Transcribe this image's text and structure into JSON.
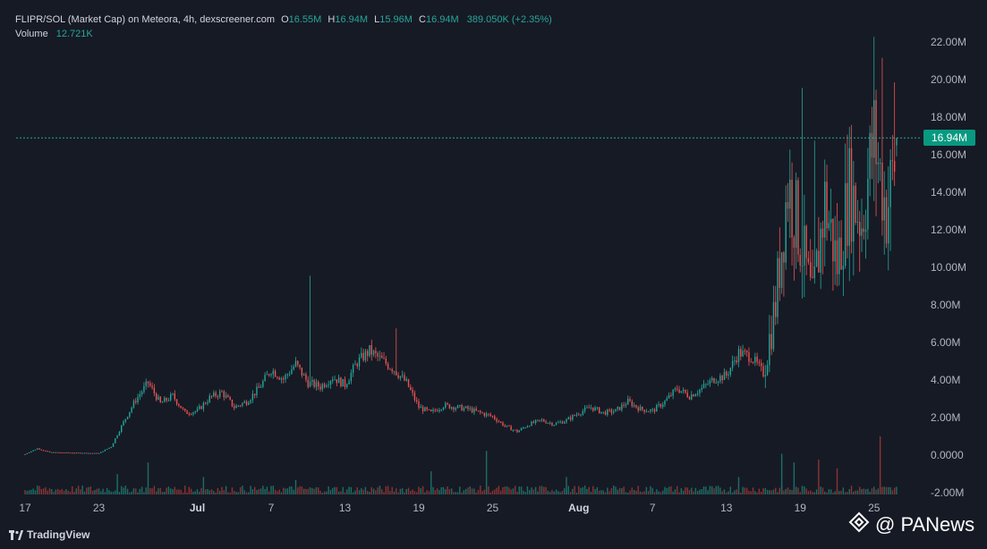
{
  "legend": {
    "pair": "FLIPR/SOL (Market Cap) on Meteora, 4h, dexscreener.com",
    "o_key": "O",
    "o_val": "16.55M",
    "h_key": "H",
    "h_val": "16.94M",
    "l_key": "L",
    "l_val": "15.96M",
    "c_key": "C",
    "c_val": "16.94M",
    "change": "389.050K (+2.35%)",
    "volume_label": "Volume",
    "volume_val": "12.721K"
  },
  "price_tag": "16.94M",
  "brand": "TradingView",
  "watermark": "@ PANews",
  "colors": {
    "background": "#161a25",
    "up": "#26a69a",
    "down": "#ef5350",
    "last_price_line": "#26a69a",
    "grid": "#232632"
  },
  "chart_data": {
    "type": "candlestick",
    "title": "FLIPR/SOL (Market Cap) on Meteora, 4h, dexscreener.com",
    "y_axis": {
      "ticks": [
        "22.00M",
        "20.00M",
        "18.00M",
        "16.00M",
        "14.00M",
        "12.00M",
        "10.00M",
        "8.00M",
        "6.00M",
        "4.00M",
        "2.00M",
        "0.0000",
        "-2.00M"
      ],
      "ylim": [
        -2,
        22
      ],
      "unit": "M"
    },
    "x_axis": {
      "ticks": [
        {
          "label": "17",
          "day": 0
        },
        {
          "label": "23",
          "day": 6
        },
        {
          "label": "Jul",
          "day": 14,
          "bold": true
        },
        {
          "label": "7",
          "day": 20
        },
        {
          "label": "13",
          "day": 26
        },
        {
          "label": "19",
          "day": 32
        },
        {
          "label": "25",
          "day": 38
        },
        {
          "label": "Aug",
          "day": 45,
          "bold": true
        },
        {
          "label": "7",
          "day": 51
        },
        {
          "label": "13",
          "day": 57
        },
        {
          "label": "19",
          "day": 63
        },
        {
          "label": "25",
          "day": 69
        }
      ],
      "xlim": [
        0,
        72
      ]
    },
    "last_price": 16.94,
    "key_points": [
      [
        0,
        0.1
      ],
      [
        1,
        0.4
      ],
      [
        2,
        0.2
      ],
      [
        6,
        0.15
      ],
      [
        7,
        0.5
      ],
      [
        8,
        1.8
      ],
      [
        9,
        3.0
      ],
      [
        10,
        3.9
      ],
      [
        11,
        2.8
      ],
      [
        12,
        3.2
      ],
      [
        13,
        2.3
      ],
      [
        14,
        2.4
      ],
      [
        15,
        3.1
      ],
      [
        16,
        3.4
      ],
      [
        17,
        2.6
      ],
      [
        18,
        2.9
      ],
      [
        19,
        3.6
      ],
      [
        20,
        4.6
      ],
      [
        21,
        4.1
      ],
      [
        22,
        4.9
      ],
      [
        23,
        3.9
      ],
      [
        24,
        3.7
      ],
      [
        25,
        4.2
      ],
      [
        26,
        3.8
      ],
      [
        27,
        5.0
      ],
      [
        28,
        5.6
      ],
      [
        29,
        5.1
      ],
      [
        30,
        4.6
      ],
      [
        31,
        3.9
      ],
      [
        32,
        2.6
      ],
      [
        33,
        2.3
      ],
      [
        34,
        2.7
      ],
      [
        35,
        2.6
      ],
      [
        36,
        2.5
      ],
      [
        37,
        2.3
      ],
      [
        38,
        2.1
      ],
      [
        39,
        1.6
      ],
      [
        40,
        1.3
      ],
      [
        41,
        1.7
      ],
      [
        42,
        1.9
      ],
      [
        43,
        1.7
      ],
      [
        44,
        1.9
      ],
      [
        45,
        2.3
      ],
      [
        46,
        2.6
      ],
      [
        47,
        2.3
      ],
      [
        48,
        2.4
      ],
      [
        49,
        2.9
      ],
      [
        50,
        2.5
      ],
      [
        51,
        2.4
      ],
      [
        52,
        2.9
      ],
      [
        53,
        3.6
      ],
      [
        54,
        3.2
      ],
      [
        55,
        3.6
      ],
      [
        56,
        4.1
      ],
      [
        57,
        4.3
      ],
      [
        58,
        5.5
      ],
      [
        59,
        5.3
      ],
      [
        60,
        4.4
      ],
      [
        61,
        8.1
      ],
      [
        62,
        14.5
      ],
      [
        63,
        11.6
      ],
      [
        64,
        8.1
      ],
      [
        65,
        13.6
      ],
      [
        66,
        10.2
      ],
      [
        67,
        14.2
      ],
      [
        68,
        12.5
      ],
      [
        69,
        17.0
      ],
      [
        70,
        13.0
      ],
      [
        71,
        16.9
      ]
    ],
    "volume_spikes": [
      {
        "day": 7.5,
        "v": 0.35
      },
      {
        "day": 10,
        "v": 0.55
      },
      {
        "day": 14.5,
        "v": 0.3
      },
      {
        "day": 22,
        "v": 0.25
      },
      {
        "day": 33,
        "v": 0.4
      },
      {
        "day": 37.5,
        "v": 0.75
      },
      {
        "day": 44,
        "v": 0.3
      },
      {
        "day": 58,
        "v": 0.3
      },
      {
        "day": 61.5,
        "v": 0.7
      },
      {
        "day": 62.5,
        "v": 0.55
      },
      {
        "day": 64.5,
        "v": 0.6
      },
      {
        "day": 66,
        "v": 0.45
      },
      {
        "day": 69.5,
        "v": 1.0
      }
    ],
    "grid": false,
    "legend_position": "top-left"
  }
}
